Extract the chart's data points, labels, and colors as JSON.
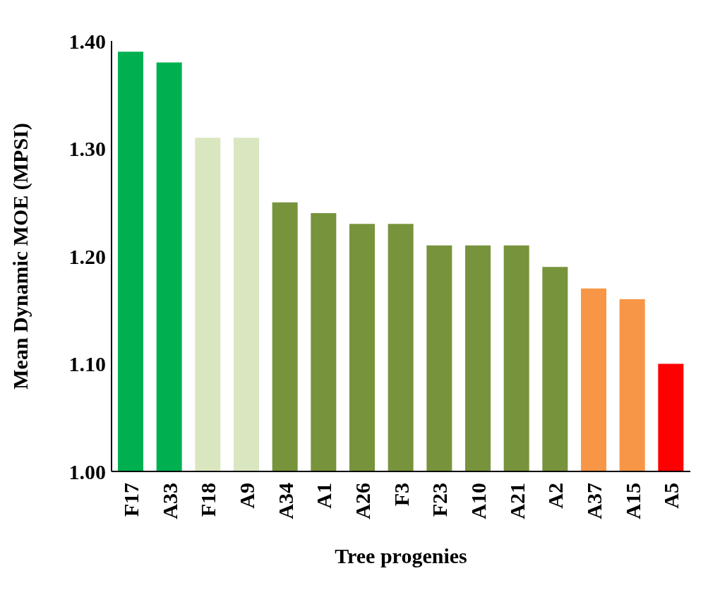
{
  "chart_data": {
    "type": "bar",
    "xlabel": "Tree progenies",
    "ylabel": "Mean Dynamic MOE (MPSI)",
    "categories": [
      "F17",
      "A33",
      "F18",
      "A9",
      "A34",
      "A1",
      "A26",
      "F3",
      "F23",
      "A10",
      "A21",
      "A2",
      "A37",
      "A15",
      "A5"
    ],
    "values": [
      1.39,
      1.38,
      1.31,
      1.31,
      1.25,
      1.24,
      1.23,
      1.23,
      1.21,
      1.21,
      1.21,
      1.19,
      1.17,
      1.16,
      1.1
    ],
    "colors": [
      "#00b050",
      "#00b050",
      "#d9e6c0",
      "#d9e6c0",
      "#77933c",
      "#77933c",
      "#77933c",
      "#77933c",
      "#77933c",
      "#77933c",
      "#77933c",
      "#77933c",
      "#f79646",
      "#f79646",
      "#ff0000"
    ],
    "ylim": [
      1.0,
      1.4
    ],
    "yticks": [
      {
        "value": 1.0,
        "label": "1.00"
      },
      {
        "value": 1.1,
        "label": "1.10"
      },
      {
        "value": 1.2,
        "label": "1.20"
      },
      {
        "value": 1.3,
        "label": "1.30"
      },
      {
        "value": 1.4,
        "label": "1.40"
      }
    ],
    "grid": false,
    "legend": false
  }
}
